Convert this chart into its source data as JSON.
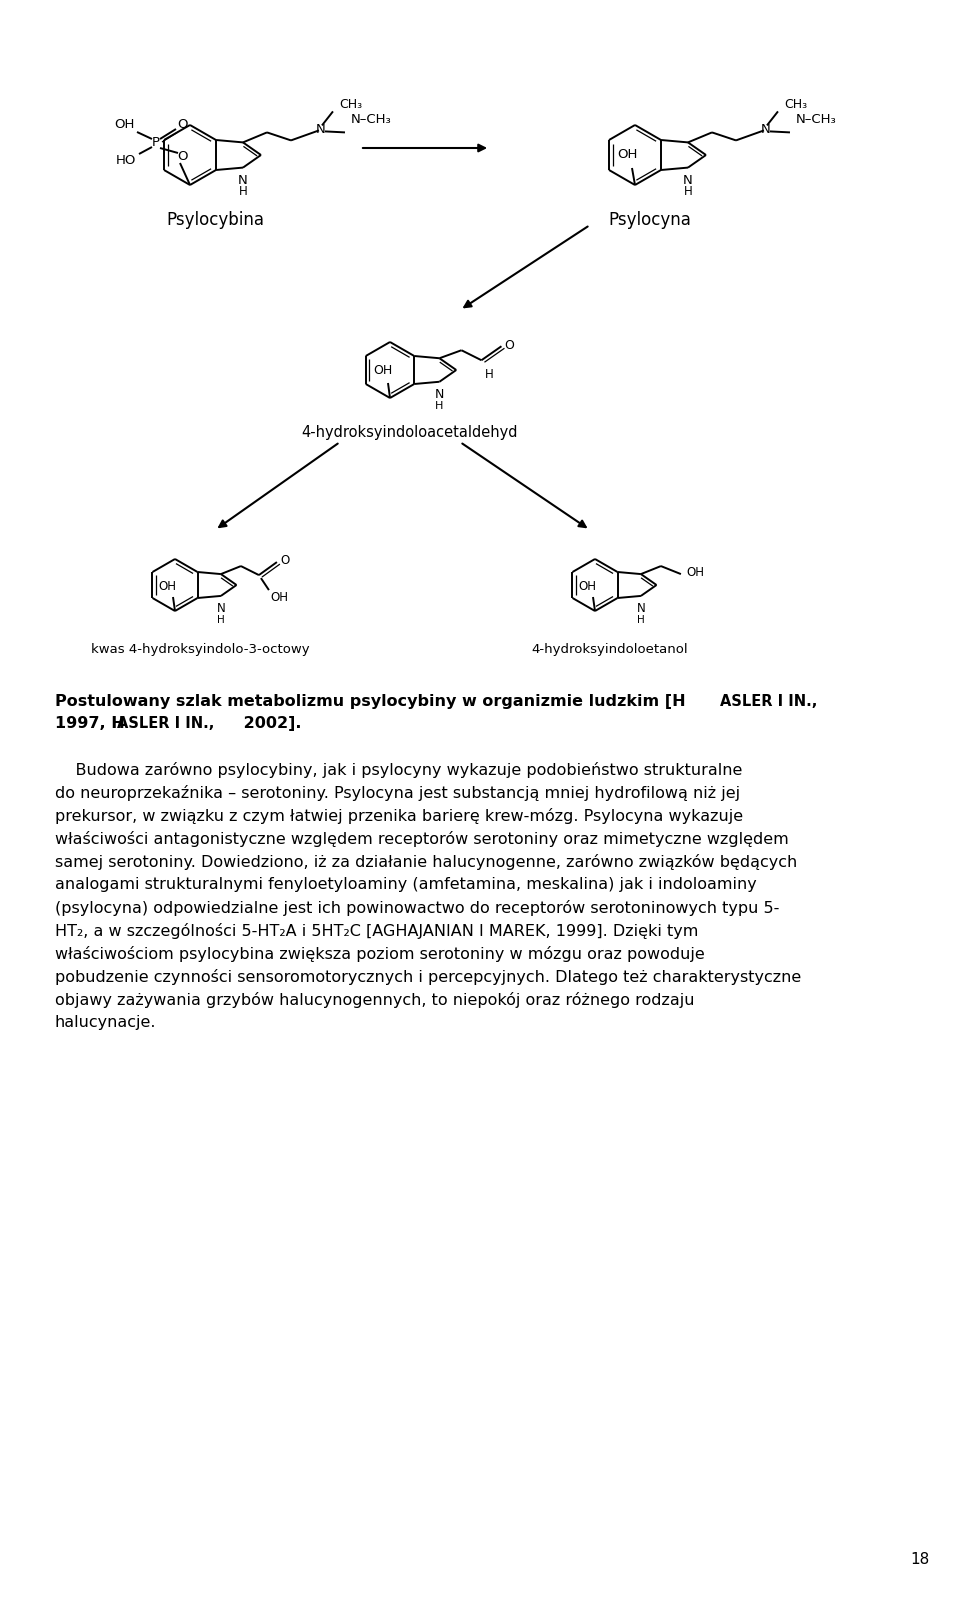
{
  "bg": "#ffffff",
  "page_num": "18",
  "caption_bold": "Postulowany szlak metabolizmu psylocybiny w organizmie ludzkim [HASLER I IN.,\n1997, HASLER I IN., 2002].",
  "para1": "Budowa zarówno psylocybiny, jak i psylocyny wykazuje podobieństwo strukturalne do neuroprzekaźnika – serotoniny. Psylocyna jest substancją mniej hydrofilową niż jej prekursor, w związku z czym łatwiej przenika barierę krew-mózg. Psylocyna wykazuje właściwości antagonistyczne względem receptorów serotoniny oraz mimetyczne względem samej serotoniny. Dowiedziono, iż za działanie halucynogenne, zarówno związków będących analogami strukturalnymi fenyloetyloaminy (amfetamina, meskalina) jak i indoloaminy (psylocyna) odpowiedzialne jest ich powinowactwo do receptorów serotoninowych typu 5-HT₂, a w szczególności 5-HT₂A i 5HT₂C [AGHAJANIAN I MAREK, 1999]. Dzięki tym właściwościom psylocybina zwiększa poziom serotoniny w mózgu oraz powoduje pobudzenie czynności sensoromotorycznych i percepcyjnych. Dlatego też charakterystyczne objawy zażywania grzybów halucynogennych, to niepokój oraz różnego rodzaju halucynacje."
}
